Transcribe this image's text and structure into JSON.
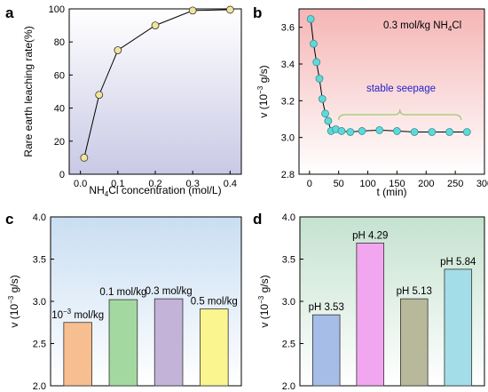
{
  "chart_data": [
    {
      "panel": "a",
      "type": "line",
      "xlabel_main": "NH",
      "xlabel_sub": "4",
      "xlabel_rest": "Cl concentration (mol/L)",
      "ylabel": "Rare earth leaching rate(%)",
      "xlim": [
        -0.03,
        0.43
      ],
      "ylim": [
        0,
        100
      ],
      "xticks": [
        "0.0",
        "0.1",
        "0.2",
        "0.3",
        "0.4"
      ],
      "yticks": [
        "0",
        "20",
        "40",
        "60",
        "80",
        "100"
      ],
      "x": [
        0.01,
        0.05,
        0.1,
        0.2,
        0.3,
        0.4
      ],
      "y": [
        10,
        48,
        75,
        90,
        99,
        99.5
      ],
      "marker_color": "#f2e59b",
      "background": [
        "#ffffff",
        "#c9c9e6"
      ]
    },
    {
      "panel": "b",
      "type": "line",
      "xlabel": "t (min)",
      "ylabel_main": "v (10",
      "ylabel_sup": "−3",
      "ylabel_rest": " g/s)",
      "xlim": [
        -18,
        300
      ],
      "ylim": [
        2.8,
        3.7
      ],
      "xticks": [
        "0",
        "50",
        "100",
        "150",
        "200",
        "250",
        "300"
      ],
      "yticks": [
        "2.8",
        "3.0",
        "3.2",
        "3.4",
        "3.6"
      ],
      "x": [
        2,
        7,
        12,
        17,
        22,
        27,
        32,
        37,
        45,
        55,
        70,
        90,
        120,
        150,
        180,
        210,
        240,
        270
      ],
      "y": [
        3.645,
        3.51,
        3.41,
        3.32,
        3.21,
        3.13,
        3.09,
        3.035,
        3.045,
        3.035,
        3.03,
        3.035,
        3.04,
        3.035,
        3.03,
        3.03,
        3.03,
        3.03
      ],
      "annotation_main": "0.3 mol/kg NH",
      "annotation_sub": "4",
      "annotation_rest": "Cl",
      "stable_label": "stable seepage",
      "stable_color": "#2222cc",
      "brace_color": "#99cc66",
      "marker_color": "#5ed9d9",
      "background": [
        "#f5b5b5",
        "#ffffff"
      ]
    },
    {
      "panel": "c",
      "type": "bar",
      "ylabel_main": "v (10",
      "ylabel_sup": "−3",
      "ylabel_rest": " g/s)",
      "ylim": [
        2.0,
        4.0
      ],
      "yticks": [
        "2.0",
        "2.5",
        "3.0",
        "3.5",
        "4.0"
      ],
      "categories": [
        "10−3 mol/kg",
        "0.1 mol/kg",
        "0.3 mol/kg",
        "0.5 mol/kg"
      ],
      "label_parts": [
        [
          "10",
          "−3",
          " mol/kg"
        ],
        [
          "0.1 mol/kg",
          "",
          ""
        ],
        [
          "0.3 mol/kg",
          "",
          ""
        ],
        [
          "0.5 mol/kg",
          "",
          ""
        ]
      ],
      "values": [
        2.75,
        3.02,
        3.03,
        2.91
      ],
      "colors": [
        "#f7be8f",
        "#a3d9a0",
        "#c3b3d8",
        "#faf58f"
      ],
      "background": [
        "#c9def2",
        "#ffffff"
      ]
    },
    {
      "panel": "d",
      "type": "bar",
      "ylabel_main": "v (10",
      "ylabel_sup": "−3",
      "ylabel_rest": " g/s)",
      "ylim": [
        2.0,
        4.0
      ],
      "yticks": [
        "2.0",
        "2.5",
        "3.0",
        "3.5",
        "4.0"
      ],
      "categories": [
        "pH 3.53",
        "pH 4.29",
        "pH 5.13",
        "pH 5.84"
      ],
      "values": [
        2.84,
        3.69,
        3.03,
        3.38
      ],
      "colors": [
        "#a6bde8",
        "#f2a6f0",
        "#b8b89a",
        "#a3dde8"
      ],
      "background": [
        "#c5e2cf",
        "#ffffff"
      ]
    }
  ]
}
